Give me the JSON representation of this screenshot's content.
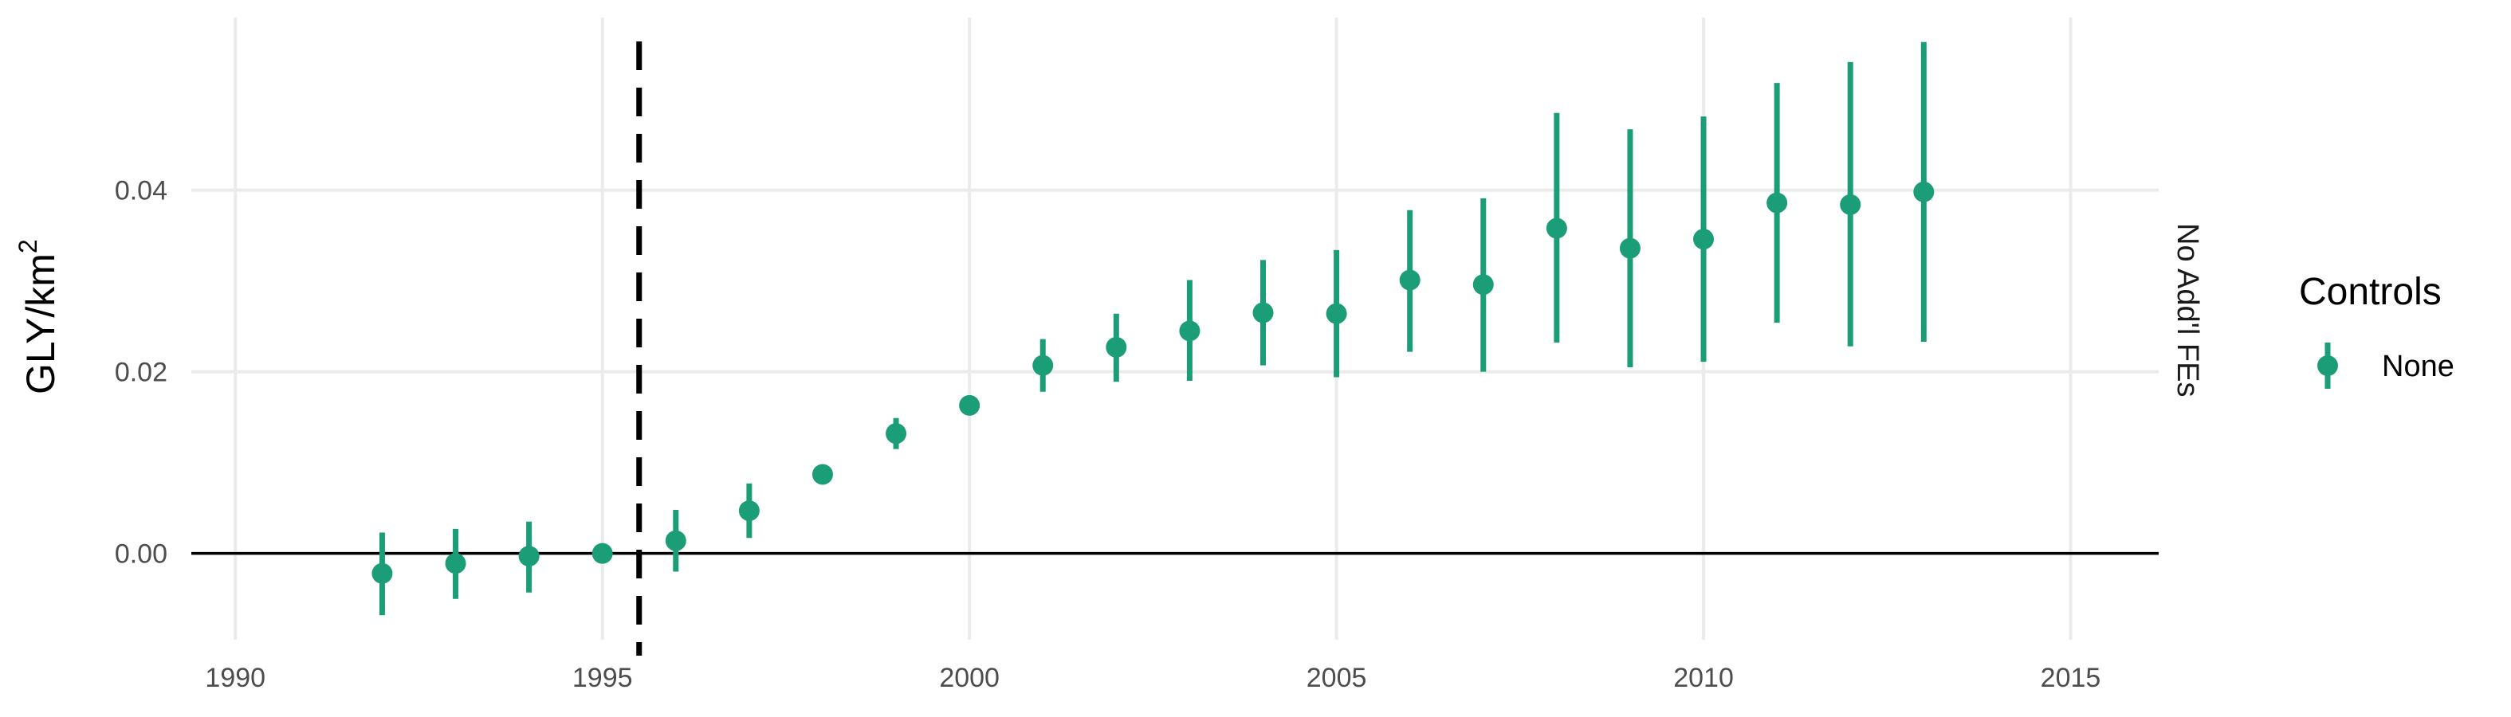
{
  "chart_data": {
    "type": "scatter",
    "title": "",
    "xlabel": "",
    "ylabel": "GLY/km",
    "ylabel_superscript": "2",
    "xlim": [
      1989.4,
      2016.2
    ],
    "ylim": [
      -0.0095,
      0.059
    ],
    "x_ticks": [
      1990,
      1995,
      2000,
      2005,
      2010,
      2015
    ],
    "y_ticks": [
      0.0,
      0.02,
      0.04
    ],
    "y_tick_labels": [
      "0.00",
      "0.02",
      "0.04"
    ],
    "grid": true,
    "reference_hline": 0.0,
    "reference_vline": 1995.5,
    "facet_label": "No Add'l FEs",
    "legend": {
      "title": "Controls",
      "placement": "right",
      "entries": [
        "None"
      ]
    },
    "series": [
      {
        "name": "None",
        "color": "#1b9e77",
        "x": [
          1992,
          1993,
          1994,
          1995,
          1996,
          1997,
          1998,
          1999,
          2000,
          2001,
          2002,
          2003,
          2004,
          2005,
          2006,
          2007,
          2008,
          2009,
          2010,
          2011,
          2012,
          2013
        ],
        "y": [
          -0.0022,
          -0.0011,
          -0.0003,
          0.0,
          0.0014,
          0.0047,
          0.0087,
          0.0132,
          0.0163,
          0.0207,
          0.0227,
          0.0245,
          0.0265,
          0.0264,
          0.0301,
          0.0296,
          0.0358,
          0.0336,
          0.0346,
          0.0386,
          0.0384,
          0.0398
        ],
        "lower": [
          -0.0068,
          -0.005,
          -0.0043,
          0.0,
          -0.002,
          0.0017,
          0.0077,
          0.0115,
          0.0163,
          0.0178,
          0.0189,
          0.019,
          0.0207,
          0.0194,
          0.0222,
          0.02,
          0.0232,
          0.0205,
          0.0211,
          0.0254,
          0.0228,
          0.0233
        ],
        "upper": [
          0.0023,
          0.0027,
          0.0035,
          0.0,
          0.0048,
          0.0077,
          0.0097,
          0.0149,
          0.0163,
          0.0236,
          0.0264,
          0.0301,
          0.0323,
          0.0334,
          0.0378,
          0.0391,
          0.0485,
          0.0467,
          0.0481,
          0.0518,
          0.0541,
          0.0563
        ]
      }
    ]
  }
}
